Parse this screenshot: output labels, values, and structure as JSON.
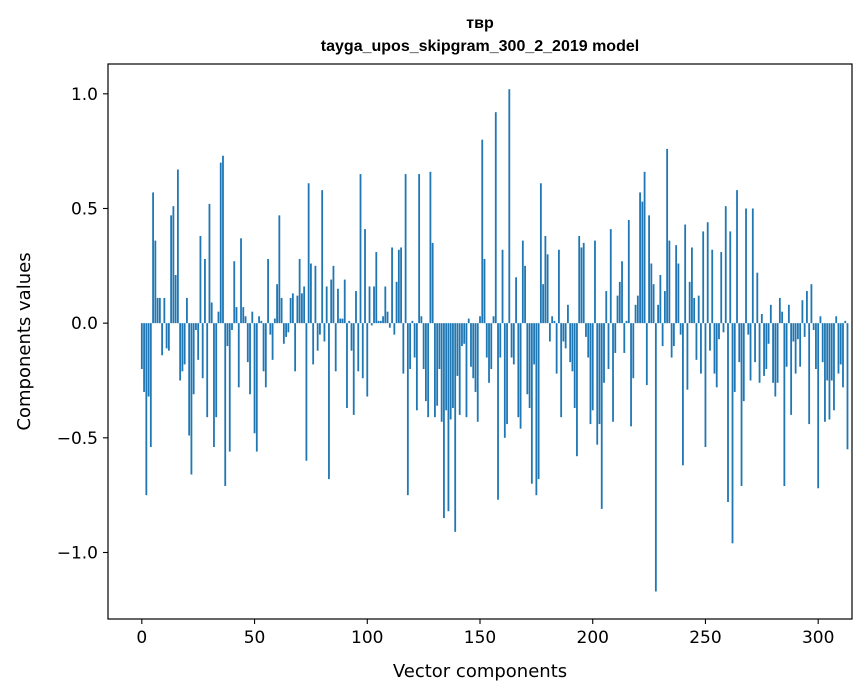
{
  "chart_data": {
    "type": "bar",
    "title": "твр",
    "subtitle": "tayga_upos_skipgram_300_2_2019 model",
    "xlabel": "Vector components",
    "ylabel": "Components values",
    "xlim": [
      -15,
      315
    ],
    "ylim": [
      -1.29,
      1.13
    ],
    "xticks": [
      0,
      50,
      100,
      150,
      200,
      250,
      300
    ],
    "xtick_labels": [
      "0",
      "50",
      "100",
      "150",
      "200",
      "250",
      "300"
    ],
    "yticks": [
      -1.0,
      -0.5,
      0.0,
      0.5,
      1.0
    ],
    "ytick_labels": [
      "−1.0",
      "−0.5",
      "0.0",
      "0.5",
      "1.0"
    ],
    "bar_color": "#1f77b4",
    "values": [
      -0.2,
      -0.3,
      -0.75,
      -0.32,
      -0.54,
      0.57,
      0.36,
      0.11,
      0.11,
      -0.14,
      0.11,
      -0.11,
      -0.12,
      0.47,
      0.51,
      0.21,
      0.67,
      -0.25,
      -0.21,
      -0.18,
      0.11,
      -0.49,
      -0.66,
      -0.31,
      -0.03,
      -0.16,
      0.38,
      -0.24,
      0.28,
      -0.41,
      0.52,
      0.09,
      -0.54,
      -0.41,
      0.05,
      0.7,
      0.73,
      -0.71,
      -0.1,
      -0.56,
      -0.03,
      0.27,
      0.07,
      -0.28,
      0.37,
      0.07,
      0.03,
      -0.17,
      -0.31,
      0.05,
      -0.48,
      -0.56,
      0.03,
      0.01,
      -0.21,
      -0.28,
      0.28,
      -0.05,
      -0.16,
      0.02,
      0.17,
      0.47,
      0.11,
      -0.09,
      -0.06,
      -0.04,
      0.11,
      0.13,
      -0.21,
      0.12,
      0.28,
      0.13,
      0.16,
      -0.6,
      0.61,
      0.26,
      -0.18,
      0.25,
      -0.12,
      -0.05,
      0.58,
      -0.08,
      0.16,
      -0.68,
      0.19,
      0.25,
      -0.21,
      0.15,
      0.02,
      0.02,
      0.19,
      -0.37,
      0.01,
      -0.12,
      -0.4,
      0.14,
      -0.21,
      0.65,
      -0.24,
      0.41,
      -0.32,
      0.16,
      -0.01,
      0.16,
      0.31,
      0.01,
      0.01,
      0.03,
      0.16,
      0.05,
      -0.02,
      0.33,
      -0.05,
      0.18,
      0.32,
      0.33,
      -0.22,
      0.65,
      -0.75,
      -0.2,
      0.01,
      -0.15,
      -0.38,
      0.65,
      0.03,
      -0.2,
      -0.34,
      -0.41,
      0.66,
      0.35,
      -0.41,
      -0.36,
      -0.2,
      -0.43,
      -0.85,
      -0.38,
      -0.82,
      -0.42,
      -0.37,
      -0.91,
      -0.23,
      -0.4,
      -0.1,
      -0.09,
      -0.41,
      0.02,
      -0.19,
      -0.24,
      -0.3,
      -0.43,
      0.03,
      0.8,
      0.28,
      -0.15,
      -0.26,
      -0.2,
      0.03,
      0.92,
      -0.77,
      -0.15,
      0.32,
      -0.5,
      -0.44,
      1.02,
      -0.15,
      -0.18,
      0.2,
      -0.41,
      -0.46,
      0.36,
      0.25,
      -0.31,
      -0.37,
      -0.7,
      -0.18,
      -0.75,
      -0.68,
      0.61,
      0.17,
      0.38,
      0.3,
      -0.08,
      0.03,
      0.01,
      -0.22,
      0.32,
      -0.41,
      -0.08,
      -0.11,
      0.08,
      -0.17,
      -0.21,
      -0.37,
      -0.58,
      0.38,
      0.33,
      0.35,
      -0.06,
      -0.15,
      -0.44,
      -0.38,
      0.36,
      -0.53,
      -0.44,
      -0.81,
      -0.26,
      0.14,
      -0.2,
      0.41,
      -0.43,
      -0.13,
      0.12,
      0.18,
      0.27,
      -0.13,
      0.01,
      0.45,
      -0.45,
      -0.24,
      0.08,
      0.12,
      0.57,
      0.53,
      0.66,
      -0.27,
      0.47,
      0.26,
      0.17,
      -1.17,
      0.08,
      0.21,
      -0.1,
      0.14,
      0.76,
      0.36,
      -0.15,
      -0.1,
      0.34,
      0.26,
      -0.05,
      -0.62,
      0.43,
      -0.29,
      0.18,
      0.33,
      0.11,
      -0.16,
      0.12,
      -0.22,
      0.4,
      -0.54,
      0.44,
      -0.12,
      0.32,
      -0.22,
      -0.28,
      -0.07,
      0.31,
      -0.04,
      0.51,
      -0.78,
      0.4,
      -0.96,
      -0.3,
      0.58,
      -0.17,
      -0.71,
      -0.34,
      0.5,
      -0.05,
      -0.25,
      0.5,
      -0.17,
      0.22,
      -0.26,
      0.04,
      -0.23,
      -0.2,
      -0.09,
      0.08,
      -0.26,
      -0.32,
      -0.26,
      0.11,
      0.05,
      -0.71,
      -0.19,
      0.08,
      -0.4,
      -0.08,
      -0.22,
      -0.07,
      -0.19,
      0.1,
      -0.06,
      0.14,
      -0.44,
      0.17,
      -0.03,
      -0.2,
      -0.72,
      0.03,
      -0.17,
      -0.43,
      -0.25,
      -0.42,
      -0.25,
      -0.38,
      0.03,
      -0.22,
      -0.18,
      -0.28,
      0.01,
      -0.55
    ]
  }
}
